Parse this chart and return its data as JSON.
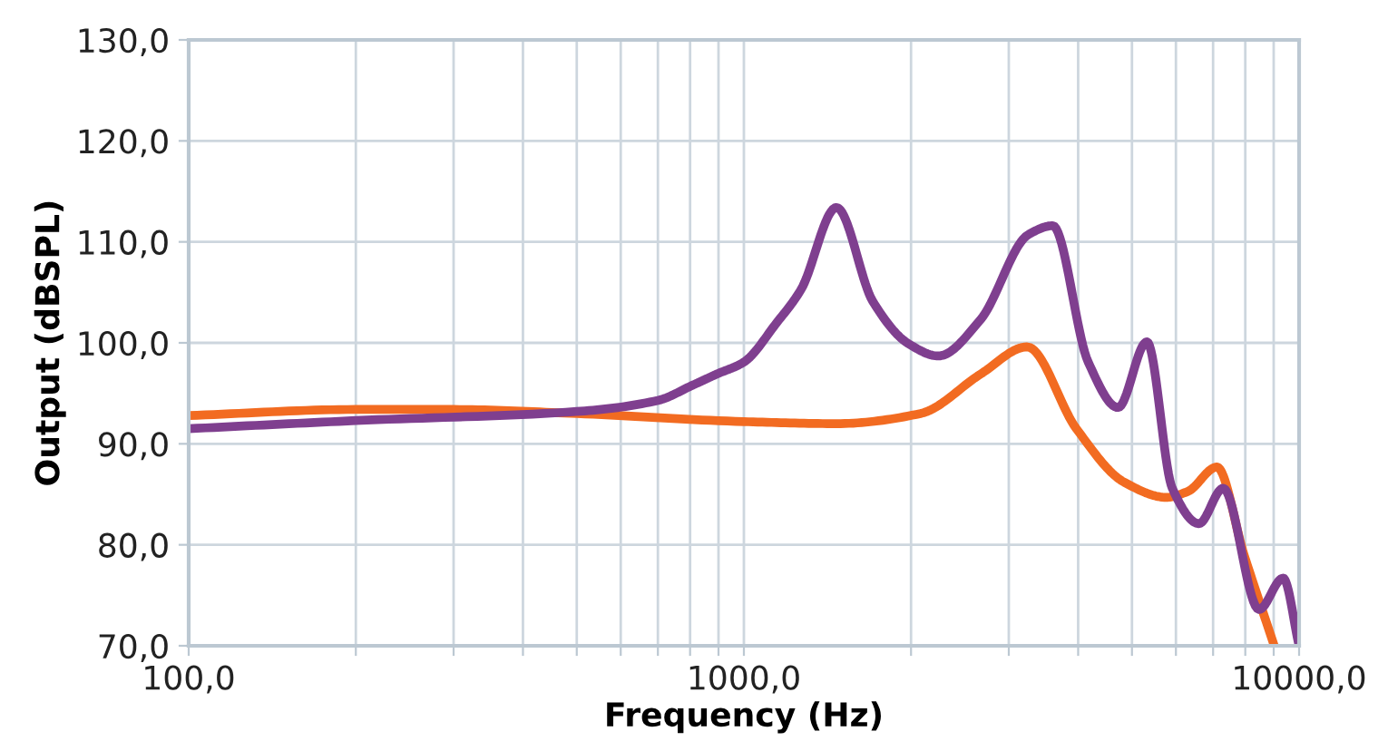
{
  "chart_data": {
    "type": "line",
    "xlabel": "Frequency (Hz)",
    "ylabel": "Output (dBSPL)",
    "log": "x",
    "grid": true,
    "marker": "none",
    "line_style": "solid",
    "xlim": [
      100,
      10000
    ],
    "ylim": [
      70,
      130
    ],
    "xticks": [
      {
        "value": 100,
        "label": "100,0"
      },
      {
        "value": 200,
        "label": null
      },
      {
        "value": 300,
        "label": null
      },
      {
        "value": 400,
        "label": null
      },
      {
        "value": 500,
        "label": null
      },
      {
        "value": 600,
        "label": null
      },
      {
        "value": 700,
        "label": null
      },
      {
        "value": 800,
        "label": null
      },
      {
        "value": 900,
        "label": null
      },
      {
        "value": 1000,
        "label": "1000,0"
      },
      {
        "value": 2000,
        "label": null
      },
      {
        "value": 3000,
        "label": null
      },
      {
        "value": 4000,
        "label": null
      },
      {
        "value": 5000,
        "label": null
      },
      {
        "value": 6000,
        "label": null
      },
      {
        "value": 7000,
        "label": null
      },
      {
        "value": 8000,
        "label": null
      },
      {
        "value": 9000,
        "label": null
      },
      {
        "value": 10000,
        "label": "10000,0"
      }
    ],
    "yticks": [
      {
        "value": 70,
        "label": "70,0"
      },
      {
        "value": 80,
        "label": "80,0"
      },
      {
        "value": 90,
        "label": "90,0"
      },
      {
        "value": 100,
        "label": "100,0"
      },
      {
        "value": 110,
        "label": "110,0"
      },
      {
        "value": 120,
        "label": "120,0"
      },
      {
        "value": 130,
        "label": "130,0"
      }
    ],
    "series": [
      {
        "color": "#f26b21",
        "x": [
          100,
          200,
          300,
          500,
          1000,
          1468,
          2080,
          2668,
          3236,
          3970,
          4840,
          5770,
          6310,
          7110,
          7960,
          9020
        ],
        "values": [
          92.8,
          93.4,
          93.4,
          93.0,
          92.2,
          92.0,
          93.0,
          96.9,
          99.6,
          91.5,
          86.2,
          84.7,
          85.3,
          87.7,
          79.0,
          70.0
        ]
      },
      {
        "color": "#7f3f8f",
        "x": [
          100,
          200,
          500,
          700,
          808,
          893,
          1000,
          1146,
          1268,
          1468,
          1707,
          1981,
          2240,
          2668,
          3250,
          3600,
          4170,
          4720,
          5320,
          5910,
          6600,
          7300,
          8470,
          9360,
          10000
        ],
        "values": [
          91.5,
          92.3,
          93.2,
          94.3,
          95.8,
          96.9,
          98.1,
          102.0,
          105.3,
          113.4,
          104.1,
          99.9,
          98.7,
          102.3,
          110.7,
          111.6,
          98.1,
          93.6,
          100.1,
          85.6,
          82.1,
          85.6,
          73.6,
          76.7,
          70.0
        ]
      }
    ]
  }
}
